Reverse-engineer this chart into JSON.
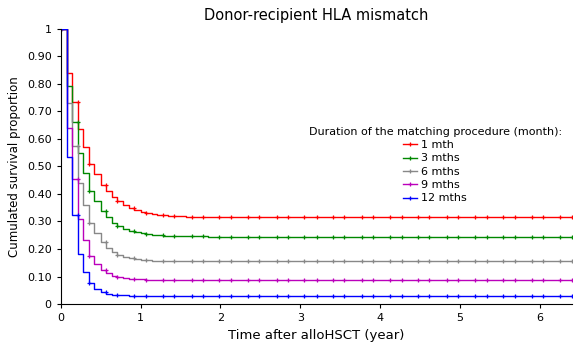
{
  "title": "Donor-recipient HLA mismatch",
  "xlabel": "Time after alloHSCT (year)",
  "ylabel": "Cumulated survival proportion",
  "legend_title": "Duration of the matching procedure (month):",
  "xlim": [
    0,
    6.4
  ],
  "ylim": [
    0,
    1.0
  ],
  "xticks": [
    0,
    1,
    2,
    3,
    4,
    5,
    6
  ],
  "yticks": [
    0,
    0.1,
    0.2,
    0.3,
    0.4,
    0.5,
    0.6,
    0.7,
    0.8,
    0.9,
    1
  ],
  "ytick_labels": [
    "0",
    "0.10",
    "0.20",
    "0.30",
    "0.40",
    "0.50",
    "0.60",
    "0.70",
    "0.80",
    "0.90",
    "1"
  ],
  "series": [
    {
      "label": "1 mth",
      "color": "#ff0000",
      "plateau": 0.315,
      "k_fast": 3.5,
      "k_slow": 0.08,
      "t_transition": 1.8
    },
    {
      "label": "3 mths",
      "color": "#008800",
      "plateau": 0.245,
      "k_fast": 4.2,
      "k_slow": 0.07,
      "t_transition": 1.9
    },
    {
      "label": "6 mths",
      "color": "#888888",
      "plateau": 0.155,
      "k_fast": 5.0,
      "k_slow": 0.05,
      "t_transition": 1.8
    },
    {
      "label": "9 mths",
      "color": "#bb00bb",
      "plateau": 0.088,
      "k_fast": 6.5,
      "k_slow": 0.04,
      "t_transition": 1.5
    },
    {
      "label": "12 mths",
      "color": "#0000ff",
      "plateau": 0.03,
      "k_fast": 8.5,
      "k_slow": 0.03,
      "t_transition": 1.3
    }
  ],
  "marker": "+",
  "markersize": 3.5,
  "linewidth": 1.0,
  "n_steps": 90,
  "x_max": 6.4,
  "figsize": [
    5.8,
    3.5
  ],
  "dpi": 100
}
